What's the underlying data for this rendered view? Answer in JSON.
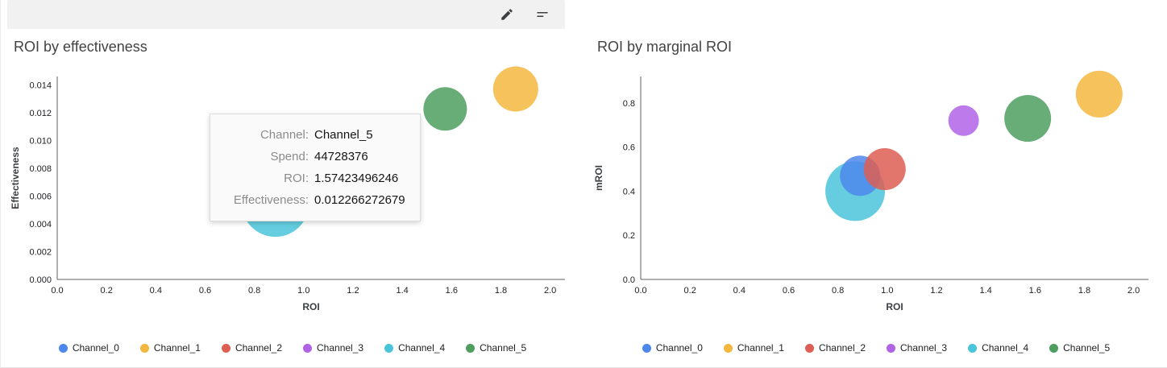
{
  "toolbar": {
    "buttons": [
      {
        "name": "edit",
        "icon": "pencil-icon"
      },
      {
        "name": "filter",
        "icon": "filter-icon"
      }
    ]
  },
  "tooltip": {
    "rows": [
      {
        "label": "Channel:",
        "value": "Channel_5"
      },
      {
        "label": "Spend:",
        "value": "44728376"
      },
      {
        "label": "ROI:",
        "value": "1.57423496246"
      },
      {
        "label": "Effectiveness:",
        "value": "0.012266272679"
      }
    ]
  },
  "palette": {
    "channel_0": "#4e87ec",
    "channel_1": "#f3b73f",
    "channel_2": "#dd5e53",
    "channel_3": "#b163e6",
    "channel_4": "#4ac4d9",
    "channel_5": "#4e9e60"
  },
  "chart_data": [
    {
      "type": "scatter",
      "title": "ROI by effectiveness",
      "xlabel": "ROI",
      "ylabel": "Effectiveness",
      "xlim": [
        0,
        2.06
      ],
      "ylim": [
        0,
        0.0146
      ],
      "xticks": [
        "0.0",
        "0.2",
        "0.4",
        "0.6",
        "0.8",
        "1.0",
        "1.2",
        "1.4",
        "1.6",
        "1.8",
        "2.0"
      ],
      "yticks": [
        "0.000",
        "0.002",
        "0.004",
        "0.006",
        "0.008",
        "0.010",
        "0.012",
        "0.014"
      ],
      "grid": false,
      "legend_position": "bottom",
      "bubbles": [
        {
          "name": "Channel_4",
          "x": 0.885,
          "y": 0.0055,
          "r": 42,
          "color": "#4ac4d9"
        },
        {
          "name": "Channel_0",
          "x": 0.885,
          "y": 0.0064,
          "r": 28,
          "color": "#4e87ec"
        },
        {
          "name": "Channel_5",
          "x": 1.574,
          "y": 0.012266272679,
          "r": 27,
          "color": "#4e9e60"
        },
        {
          "name": "Channel_1",
          "x": 1.86,
          "y": 0.0137,
          "r": 28,
          "color": "#f3b73f"
        }
      ],
      "legend": [
        {
          "label": "Channel_0",
          "color": "#4e87ec"
        },
        {
          "label": "Channel_1",
          "color": "#f3b73f"
        },
        {
          "label": "Channel_2",
          "color": "#dd5e53"
        },
        {
          "label": "Channel_3",
          "color": "#b163e6"
        },
        {
          "label": "Channel_4",
          "color": "#4ac4d9"
        },
        {
          "label": "Channel_5",
          "color": "#4e9e60"
        }
      ]
    },
    {
      "type": "scatter",
      "title": "ROI by marginal ROI",
      "xlabel": "ROI",
      "ylabel": "mROI",
      "xlim": [
        0,
        2.06
      ],
      "ylim": [
        0,
        0.92
      ],
      "xticks": [
        "0.0",
        "0.2",
        "0.4",
        "0.6",
        "0.8",
        "1.0",
        "1.2",
        "1.4",
        "1.6",
        "1.8",
        "2.0"
      ],
      "yticks": [
        "0.0",
        "0.2",
        "0.4",
        "0.6",
        "0.8"
      ],
      "grid": false,
      "legend_position": "bottom",
      "bubbles": [
        {
          "name": "Channel_4",
          "x": 0.87,
          "y": 0.4,
          "r": 37,
          "color": "#4ac4d9"
        },
        {
          "name": "Channel_0",
          "x": 0.89,
          "y": 0.47,
          "r": 25,
          "color": "#4e87ec"
        },
        {
          "name": "Channel_2",
          "x": 0.99,
          "y": 0.5,
          "r": 26,
          "color": "#dd5e53"
        },
        {
          "name": "Channel_3",
          "x": 1.31,
          "y": 0.72,
          "r": 19,
          "color": "#b163e6"
        },
        {
          "name": "Channel_5",
          "x": 1.57,
          "y": 0.73,
          "r": 29,
          "color": "#4e9e60"
        },
        {
          "name": "Channel_1",
          "x": 1.86,
          "y": 0.84,
          "r": 29,
          "color": "#f3b73f"
        }
      ],
      "legend": [
        {
          "label": "Channel_0",
          "color": "#4e87ec"
        },
        {
          "label": "Channel_1",
          "color": "#f3b73f"
        },
        {
          "label": "Channel_2",
          "color": "#dd5e53"
        },
        {
          "label": "Channel_3",
          "color": "#b163e6"
        },
        {
          "label": "Channel_4",
          "color": "#4ac4d9"
        },
        {
          "label": "Channel_5",
          "color": "#4e9e60"
        }
      ]
    }
  ]
}
